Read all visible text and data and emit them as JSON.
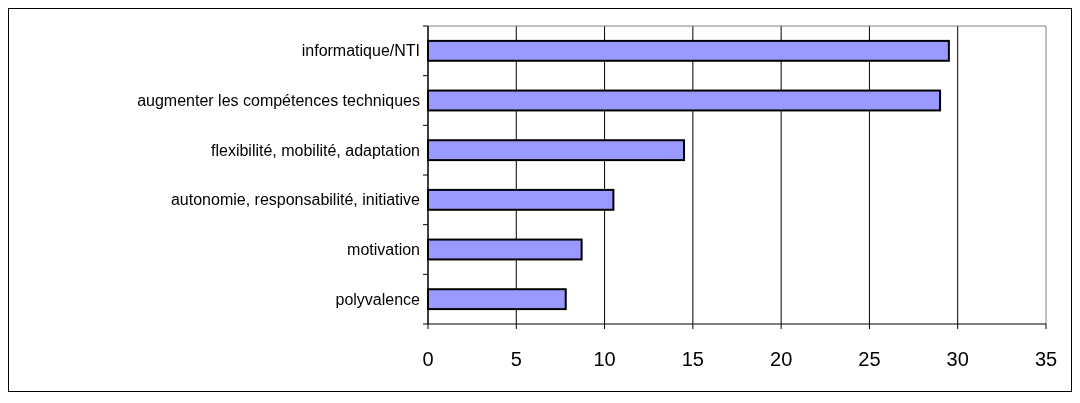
{
  "chart_data": {
    "type": "bar",
    "orientation": "horizontal",
    "categories": [
      "informatique/NTI",
      "augmenter les compétences techniques",
      "flexibilité, mobilité, adaptation",
      "autonomie, responsabilité, initiative",
      "motivation",
      "polyvalence"
    ],
    "values": [
      29.5,
      29.0,
      14.5,
      10.5,
      8.7,
      7.8
    ],
    "color": "#9999ff",
    "xlim": [
      0,
      35
    ],
    "xticks": [
      0,
      5,
      10,
      15,
      20,
      25,
      30,
      35
    ],
    "grid": "x"
  }
}
